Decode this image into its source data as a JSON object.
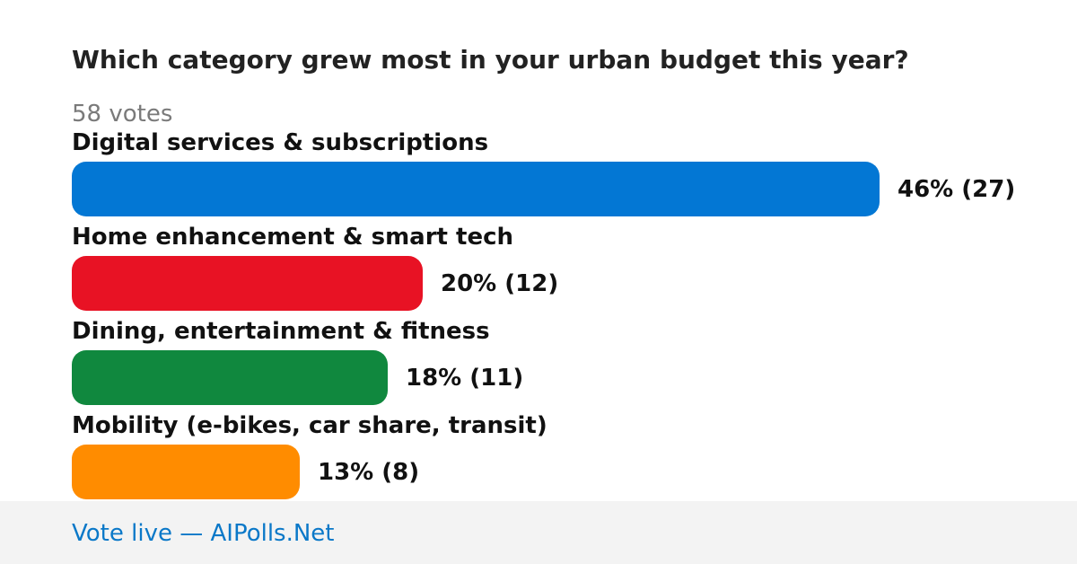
{
  "poll": {
    "question": "Which category grew most in your urban budget this year?",
    "votes_text": "58 votes"
  },
  "chart_data": {
    "type": "bar",
    "orientation": "horizontal",
    "total_votes": 58,
    "categories": [
      "Digital services & subscriptions",
      "Home enhancement & smart tech",
      "Dining, entertainment & fitness",
      "Mobility (e-bikes, car share, transit)"
    ],
    "values": [
      46,
      20,
      18,
      13
    ],
    "counts": [
      27,
      12,
      11,
      8
    ],
    "value_labels": [
      "46% (27)",
      "20% (12)",
      "18% (11)",
      "13% (8)"
    ],
    "colors": [
      "#0377d4",
      "#e81224",
      "#10883e",
      "#ff8c00"
    ],
    "unit": "percent",
    "grid": false,
    "legend": "none"
  },
  "footer": {
    "link_text": "Vote live — AIPolls.Net",
    "background_color": "#f3f3f3",
    "link_color": "#0a78c8"
  }
}
